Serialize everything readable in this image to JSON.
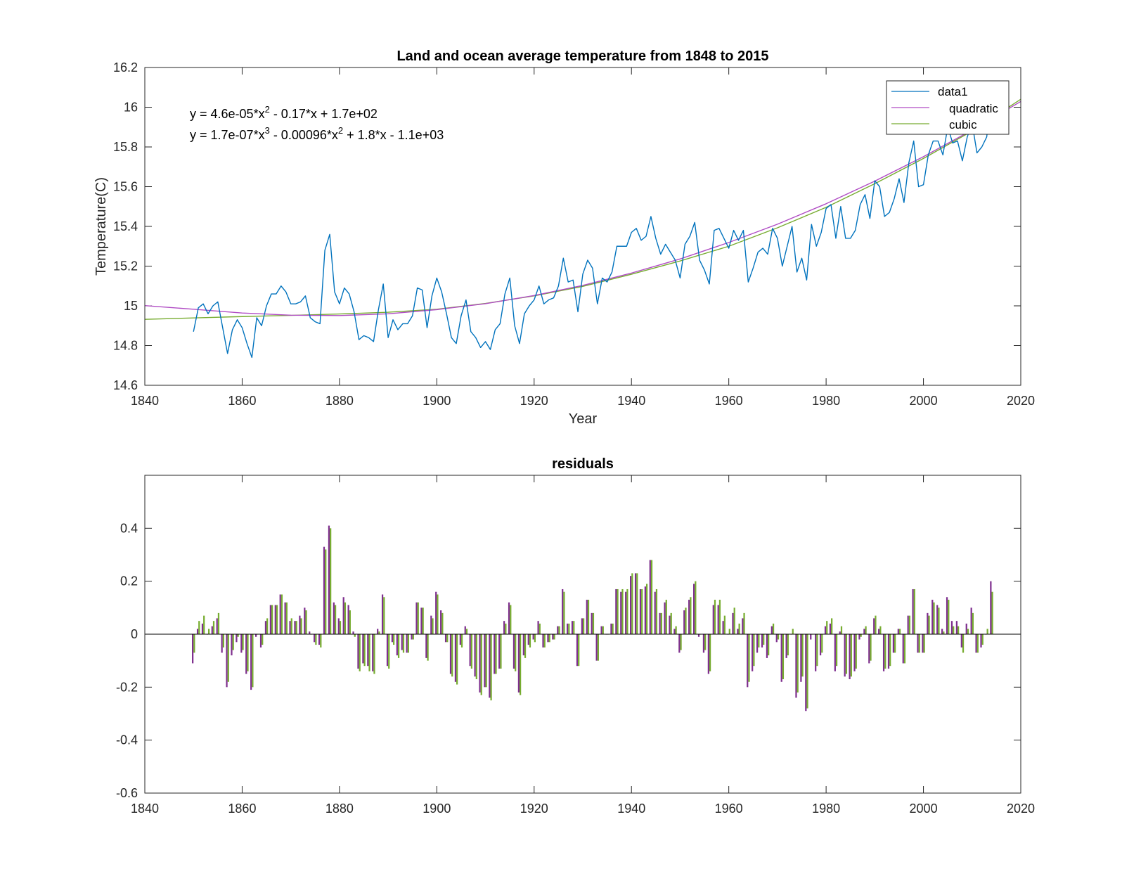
{
  "chart_data": [
    {
      "type": "line",
      "title": "Land and ocean average temperature from 1848 to 2015",
      "xlabel": "Year",
      "ylabel": "Temperature(C)",
      "xlim": [
        1840,
        2020
      ],
      "ylim": [
        14.6,
        16.2
      ],
      "xticks": [
        "1840",
        "1860",
        "1880",
        "1900",
        "1920",
        "1940",
        "1960",
        "1980",
        "2000",
        "2020"
      ],
      "yticks": [
        "14.6",
        "14.8",
        "15",
        "15.2",
        "15.4",
        "15.6",
        "15.8",
        "16",
        "16.2"
      ],
      "equations": [
        {
          "pre": "y = 4.6e-05*x",
          "sup": "2",
          "post": " - 0.17*x + 1.7e+02"
        },
        {
          "pre": "y = 1.7e-07*x",
          "sup": "3",
          "mid": " - 0.00096*x",
          "sup2": "2",
          "post": " + 1.8*x - 1.1e+03"
        }
      ],
      "legend_position": "top-right",
      "legend": [
        {
          "name": "data1",
          "color": "#0072BD"
        },
        {
          "name": "quadratic",
          "color": "#B04CC4"
        },
        {
          "name": "cubic",
          "color": "#77AC30"
        }
      ],
      "series": [
        {
          "name": "data1",
          "color": "#0072BD",
          "x_start": 1850,
          "x_step": 1,
          "values": [
            14.87,
            14.99,
            15.01,
            14.96,
            15.0,
            15.02,
            14.89,
            14.76,
            14.88,
            14.93,
            14.89,
            14.81,
            14.74,
            14.94,
            14.9,
            15.0,
            15.06,
            15.06,
            15.1,
            15.07,
            15.01,
            15.01,
            15.02,
            15.05,
            14.94,
            14.92,
            14.91,
            15.28,
            15.36,
            15.07,
            15.01,
            15.09,
            15.06,
            14.97,
            14.83,
            14.85,
            14.84,
            14.82,
            14.98,
            15.11,
            14.84,
            14.93,
            14.88,
            14.91,
            14.91,
            14.95,
            15.09,
            15.08,
            14.89,
            15.05,
            15.14,
            15.07,
            14.96,
            14.84,
            14.81,
            14.95,
            15.03,
            14.87,
            14.84,
            14.79,
            14.82,
            14.78,
            14.88,
            14.91,
            15.06,
            15.14,
            14.9,
            14.81,
            14.96,
            15.0,
            15.03,
            15.1,
            15.01,
            15.03,
            15.04,
            15.1,
            15.24,
            15.12,
            15.13,
            14.97,
            15.16,
            15.23,
            15.19,
            15.01,
            15.14,
            15.12,
            15.17,
            15.3,
            15.3,
            15.3,
            15.37,
            15.39,
            15.33,
            15.35,
            15.45,
            15.34,
            15.26,
            15.31,
            15.27,
            15.23,
            15.14,
            15.31,
            15.35,
            15.42,
            15.23,
            15.18,
            15.11,
            15.38,
            15.39,
            15.34,
            15.29,
            15.38,
            15.33,
            15.38,
            15.12,
            15.19,
            15.27,
            15.29,
            15.26,
            15.39,
            15.34,
            15.2,
            15.3,
            15.4,
            15.17,
            15.24,
            15.13,
            15.41,
            15.3,
            15.37,
            15.49,
            15.51,
            15.34,
            15.5,
            15.34,
            15.34,
            15.38,
            15.51,
            15.56,
            15.44,
            15.63,
            15.6,
            15.45,
            15.47,
            15.54,
            15.64,
            15.52,
            15.72,
            15.83,
            15.6,
            15.61,
            15.76,
            15.83,
            15.83,
            15.76,
            15.9,
            15.82,
            15.83,
            15.73,
            15.85,
            15.92,
            15.77,
            15.8,
            15.85,
            16.05
          ]
        },
        {
          "name": "quadratic",
          "color": "#B04CC4",
          "x": [
            1840,
            1850,
            1860,
            1870,
            1880,
            1890,
            1900,
            1910,
            1920,
            1930,
            1940,
            1950,
            1960,
            1970,
            1980,
            1990,
            2000,
            2010,
            2020
          ],
          "values": [
            15.001,
            14.983,
            14.964,
            14.953,
            14.951,
            14.96,
            14.981,
            15.011,
            15.052,
            15.103,
            15.165,
            15.236,
            15.319,
            15.411,
            15.514,
            15.628,
            15.751,
            15.885,
            16.029
          ]
        },
        {
          "name": "cubic",
          "color": "#77AC30",
          "x": [
            1840,
            1850,
            1860,
            1870,
            1880,
            1890,
            1900,
            1910,
            1920,
            1930,
            1940,
            1950,
            1960,
            1970,
            1980,
            1990,
            2000,
            2010,
            2020
          ],
          "values": [
            14.932,
            14.939,
            14.946,
            14.952,
            14.959,
            14.968,
            14.983,
            15.012,
            15.05,
            15.098,
            15.159,
            15.226,
            15.3,
            15.393,
            15.496,
            15.615,
            15.742,
            15.88,
            16.04
          ]
        }
      ]
    },
    {
      "type": "bar",
      "title": "residuals",
      "xlabel": "",
      "ylabel": "",
      "xlim": [
        1840,
        2020
      ],
      "ylim": [
        -0.6,
        0.6
      ],
      "xticks": [
        "1840",
        "1860",
        "1880",
        "1900",
        "1920",
        "1940",
        "1960",
        "1980",
        "2000",
        "2020"
      ],
      "yticks": [
        "-0.6",
        "-0.4",
        "-0.2",
        "0",
        "0.2",
        "0.4"
      ],
      "bar_colors": [
        "#7E2F8E",
        "#77AC30"
      ],
      "x_start": 1850,
      "x_step": 1,
      "series": [
        {
          "name": "quadratic",
          "color": "#7E2F8E",
          "values": [
            -0.11,
            0.02,
            0.04,
            0.0,
            0.03,
            0.06,
            -0.07,
            -0.2,
            -0.08,
            -0.03,
            -0.07,
            -0.15,
            -0.21,
            -0.01,
            -0.05,
            0.05,
            0.11,
            0.11,
            0.15,
            0.12,
            0.05,
            0.05,
            0.07,
            0.1,
            0.01,
            -0.03,
            -0.04,
            0.33,
            0.41,
            0.12,
            0.06,
            0.14,
            0.11,
            0.01,
            -0.13,
            -0.11,
            -0.12,
            -0.14,
            0.02,
            0.15,
            -0.12,
            -0.03,
            -0.08,
            -0.06,
            -0.07,
            -0.02,
            0.12,
            0.1,
            -0.09,
            0.07,
            0.16,
            0.09,
            -0.03,
            -0.15,
            -0.18,
            -0.04,
            0.03,
            -0.12,
            -0.16,
            -0.22,
            -0.2,
            -0.24,
            -0.15,
            -0.13,
            0.05,
            0.12,
            -0.13,
            -0.22,
            -0.08,
            -0.04,
            -0.02,
            0.05,
            -0.05,
            -0.03,
            -0.02,
            0.03,
            0.17,
            0.04,
            0.05,
            -0.12,
            0.06,
            0.13,
            0.08,
            -0.1,
            0.03,
            0.0,
            0.04,
            0.17,
            0.16,
            0.16,
            0.22,
            0.23,
            0.17,
            0.18,
            0.28,
            0.16,
            0.08,
            0.12,
            0.07,
            0.02,
            -0.07,
            0.09,
            0.13,
            0.19,
            -0.01,
            -0.07,
            -0.15,
            0.11,
            0.11,
            0.05,
            0.0,
            0.08,
            0.02,
            0.06,
            -0.2,
            -0.14,
            -0.07,
            -0.05,
            -0.09,
            0.03,
            -0.03,
            -0.18,
            -0.09,
            0.0,
            -0.24,
            -0.18,
            -0.29,
            -0.02,
            -0.14,
            -0.08,
            0.03,
            0.04,
            -0.14,
            0.01,
            -0.16,
            -0.17,
            -0.14,
            -0.02,
            0.02,
            -0.11,
            0.06,
            0.02,
            -0.14,
            -0.13,
            -0.07,
            0.02,
            -0.11,
            0.07,
            0.17,
            -0.07,
            -0.07,
            0.08,
            0.13,
            0.11,
            0.02,
            0.14,
            0.05,
            0.05,
            -0.05,
            0.04,
            0.1,
            -0.07,
            -0.05,
            0.0,
            0.2
          ]
        },
        {
          "name": "cubic",
          "color": "#77AC30",
          "values": [
            -0.07,
            0.05,
            0.07,
            0.02,
            0.05,
            0.08,
            -0.05,
            -0.18,
            -0.06,
            -0.01,
            -0.06,
            -0.14,
            -0.2,
            0.0,
            -0.04,
            0.06,
            0.11,
            0.11,
            0.15,
            0.12,
            0.06,
            0.05,
            0.06,
            0.09,
            0.0,
            -0.04,
            -0.05,
            0.32,
            0.4,
            0.11,
            0.05,
            0.12,
            0.09,
            -0.01,
            -0.14,
            -0.12,
            -0.14,
            -0.15,
            0.01,
            0.14,
            -0.13,
            -0.04,
            -0.09,
            -0.07,
            -0.07,
            -0.02,
            0.12,
            0.1,
            -0.1,
            0.06,
            0.15,
            0.08,
            -0.03,
            -0.16,
            -0.19,
            -0.05,
            0.02,
            -0.13,
            -0.17,
            -0.23,
            -0.2,
            -0.25,
            -0.15,
            -0.13,
            0.04,
            0.11,
            -0.14,
            -0.23,
            -0.09,
            -0.05,
            -0.03,
            0.04,
            -0.05,
            -0.03,
            -0.02,
            0.03,
            0.16,
            0.04,
            0.05,
            -0.12,
            0.06,
            0.13,
            0.08,
            -0.1,
            0.03,
            0.0,
            0.04,
            0.17,
            0.17,
            0.17,
            0.23,
            0.23,
            0.17,
            0.19,
            0.28,
            0.17,
            0.08,
            0.13,
            0.08,
            0.03,
            -0.06,
            0.1,
            0.14,
            0.2,
            0.0,
            -0.06,
            -0.14,
            0.13,
            0.13,
            0.07,
            0.02,
            0.1,
            0.04,
            0.08,
            -0.18,
            -0.12,
            -0.05,
            -0.04,
            -0.08,
            0.04,
            -0.02,
            -0.17,
            -0.08,
            0.02,
            -0.22,
            -0.16,
            -0.28,
            0.0,
            -0.12,
            -0.07,
            0.05,
            0.06,
            -0.12,
            0.03,
            -0.15,
            -0.16,
            -0.13,
            -0.01,
            0.03,
            -0.1,
            0.07,
            0.03,
            -0.13,
            -0.12,
            -0.07,
            0.02,
            -0.11,
            0.07,
            0.17,
            -0.07,
            -0.07,
            0.07,
            0.12,
            0.1,
            0.01,
            0.13,
            0.03,
            0.03,
            -0.07,
            0.02,
            0.08,
            -0.07,
            -0.04,
            0.02,
            0.16
          ]
        }
      ]
    }
  ]
}
